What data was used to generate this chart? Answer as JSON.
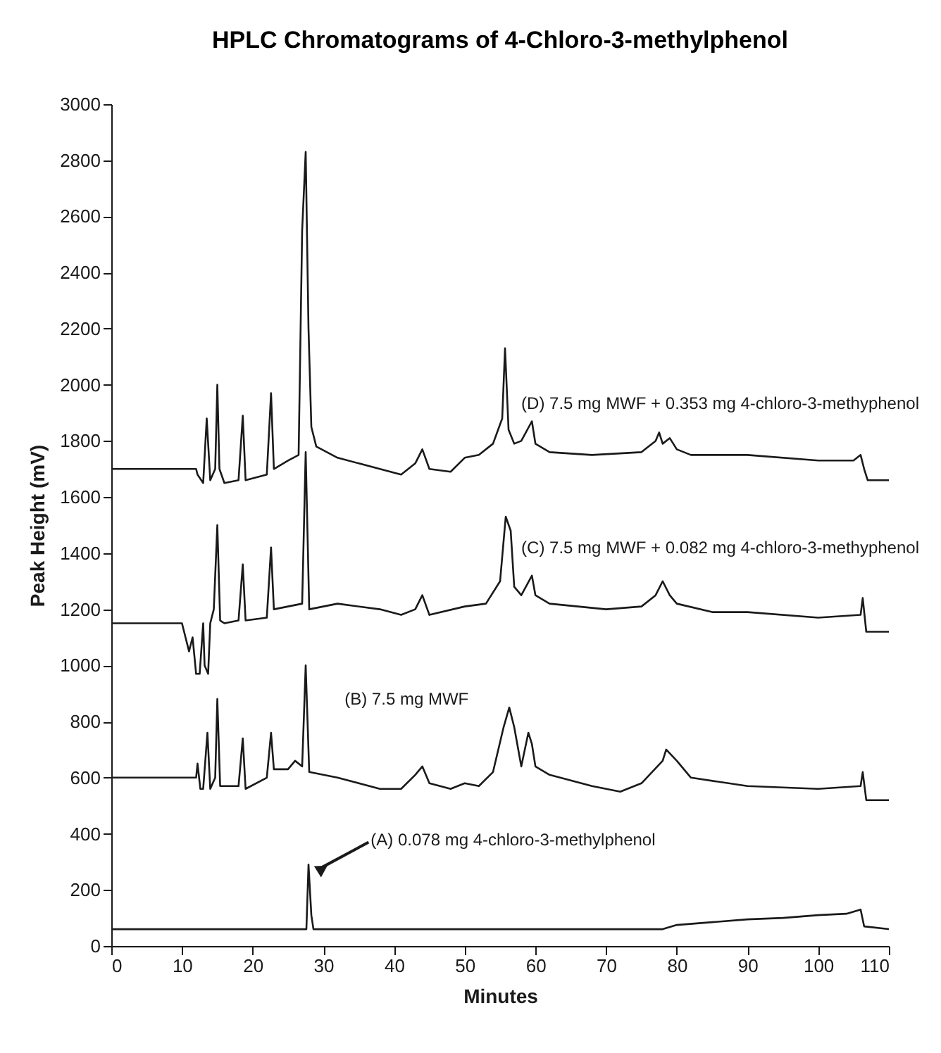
{
  "chart_data": {
    "type": "line",
    "title": "HPLC Chromatograms of 4-Chloro-3-methylphenol",
    "xlabel": "Minutes",
    "ylabel": "Peak Height (mV)",
    "xlim": [
      0,
      110
    ],
    "xticks": [
      0,
      10,
      20,
      30,
      40,
      50,
      60,
      70,
      80,
      90,
      100,
      110
    ],
    "ylim": [
      0,
      3000
    ],
    "yticks": [
      0,
      200,
      400,
      600,
      800,
      1000,
      1200,
      1400,
      1600,
      1800,
      2000,
      2200,
      2400,
      2600,
      2800,
      3000
    ],
    "grid": false,
    "legend": false,
    "marker": "none",
    "line_style": "solid",
    "series": [
      {
        "name": "(D) 7.5 mg MWF + 0.353 mg 4-chloro-3-methyphenol",
        "color": "#1a1a1a",
        "x": [
          0,
          12,
          12.2,
          13,
          13.5,
          14,
          14.7,
          15,
          15.3,
          16,
          18,
          18.6,
          19,
          22,
          22.6,
          23,
          25,
          26.5,
          27,
          27.5,
          27.9,
          28.3,
          29,
          32,
          38,
          41,
          43,
          44,
          45,
          48,
          50,
          52,
          54,
          55.3,
          55.7,
          56.2,
          57,
          58,
          59.5,
          60,
          62,
          68,
          75,
          77,
          77.5,
          78,
          79,
          80,
          82,
          90,
          100,
          105,
          106,
          106.5,
          107,
          110
        ],
        "values": [
          1700,
          1700,
          1680,
          1650,
          1880,
          1660,
          1700,
          2000,
          1700,
          1650,
          1660,
          1890,
          1660,
          1680,
          1970,
          1700,
          1730,
          1750,
          2550,
          2830,
          2200,
          1850,
          1780,
          1740,
          1700,
          1680,
          1720,
          1770,
          1700,
          1690,
          1740,
          1750,
          1790,
          1880,
          2130,
          1840,
          1790,
          1800,
          1870,
          1790,
          1760,
          1750,
          1760,
          1800,
          1830,
          1790,
          1810,
          1770,
          1750,
          1750,
          1730,
          1730,
          1750,
          1700,
          1660,
          1660
        ]
      },
      {
        "name": "(C) 7.5 mg MWF + 0.082 mg 4-chloro-3-methyphenol",
        "color": "#1a1a1a",
        "x": [
          0,
          10,
          10.5,
          11,
          11.5,
          12,
          12.5,
          13,
          13.2,
          13.7,
          14,
          14.5,
          15,
          15.4,
          16,
          18,
          18.6,
          19,
          22,
          22.6,
          23,
          25,
          27,
          27.5,
          28,
          32,
          38,
          41,
          43,
          44,
          45,
          50,
          53,
          55,
          55.8,
          56.5,
          57,
          58,
          59.5,
          60,
          62,
          70,
          75,
          77,
          78,
          79,
          80,
          85,
          90,
          100,
          106,
          106.3,
          106.8,
          110
        ],
        "values": [
          1150,
          1150,
          1100,
          1050,
          1100,
          970,
          970,
          1150,
          1000,
          970,
          1150,
          1200,
          1500,
          1160,
          1150,
          1160,
          1360,
          1160,
          1170,
          1420,
          1200,
          1210,
          1220,
          1760,
          1200,
          1220,
          1200,
          1180,
          1200,
          1250,
          1180,
          1210,
          1220,
          1300,
          1530,
          1480,
          1280,
          1250,
          1320,
          1250,
          1220,
          1200,
          1210,
          1250,
          1300,
          1250,
          1220,
          1190,
          1190,
          1170,
          1180,
          1240,
          1120,
          1120
        ]
      },
      {
        "name": "(B) 7.5 mg MWF",
        "color": "#1a1a1a",
        "x": [
          0,
          12,
          12.2,
          12.6,
          13,
          13.6,
          14,
          14.7,
          15,
          15.4,
          18,
          18.6,
          19,
          22,
          22.6,
          23,
          25,
          26,
          27,
          27.5,
          28,
          32,
          38,
          41,
          43,
          44,
          45,
          48,
          50,
          52,
          54,
          55.5,
          56.3,
          57,
          58,
          59,
          59.5,
          60,
          62,
          68,
          72,
          75,
          78,
          78.5,
          80,
          82,
          90,
          100,
          106,
          106.3,
          106.8,
          110
        ],
        "values": [
          600,
          600,
          650,
          560,
          560,
          760,
          560,
          600,
          880,
          570,
          570,
          740,
          560,
          600,
          760,
          630,
          630,
          660,
          640,
          1000,
          620,
          600,
          560,
          560,
          610,
          640,
          580,
          560,
          580,
          570,
          620,
          780,
          850,
          780,
          640,
          760,
          720,
          640,
          610,
          570,
          550,
          580,
          660,
          700,
          660,
          600,
          570,
          560,
          570,
          620,
          520,
          520
        ]
      },
      {
        "color": "#1a1a1a",
        "x": [
          0,
          27.6,
          27.9,
          28.3,
          28.6,
          78,
          80,
          85,
          90,
          95,
          100,
          104,
          106,
          106.5,
          110
        ],
        "values": [
          60,
          60,
          290,
          110,
          60,
          60,
          75,
          85,
          95,
          100,
          110,
          115,
          130,
          70,
          60
        ]
      }
    ],
    "annotations": [
      {
        "text": "(A) 0.078 mg 4-chloro-3-methylphenol",
        "x": 28,
        "y": 290
      }
    ]
  }
}
